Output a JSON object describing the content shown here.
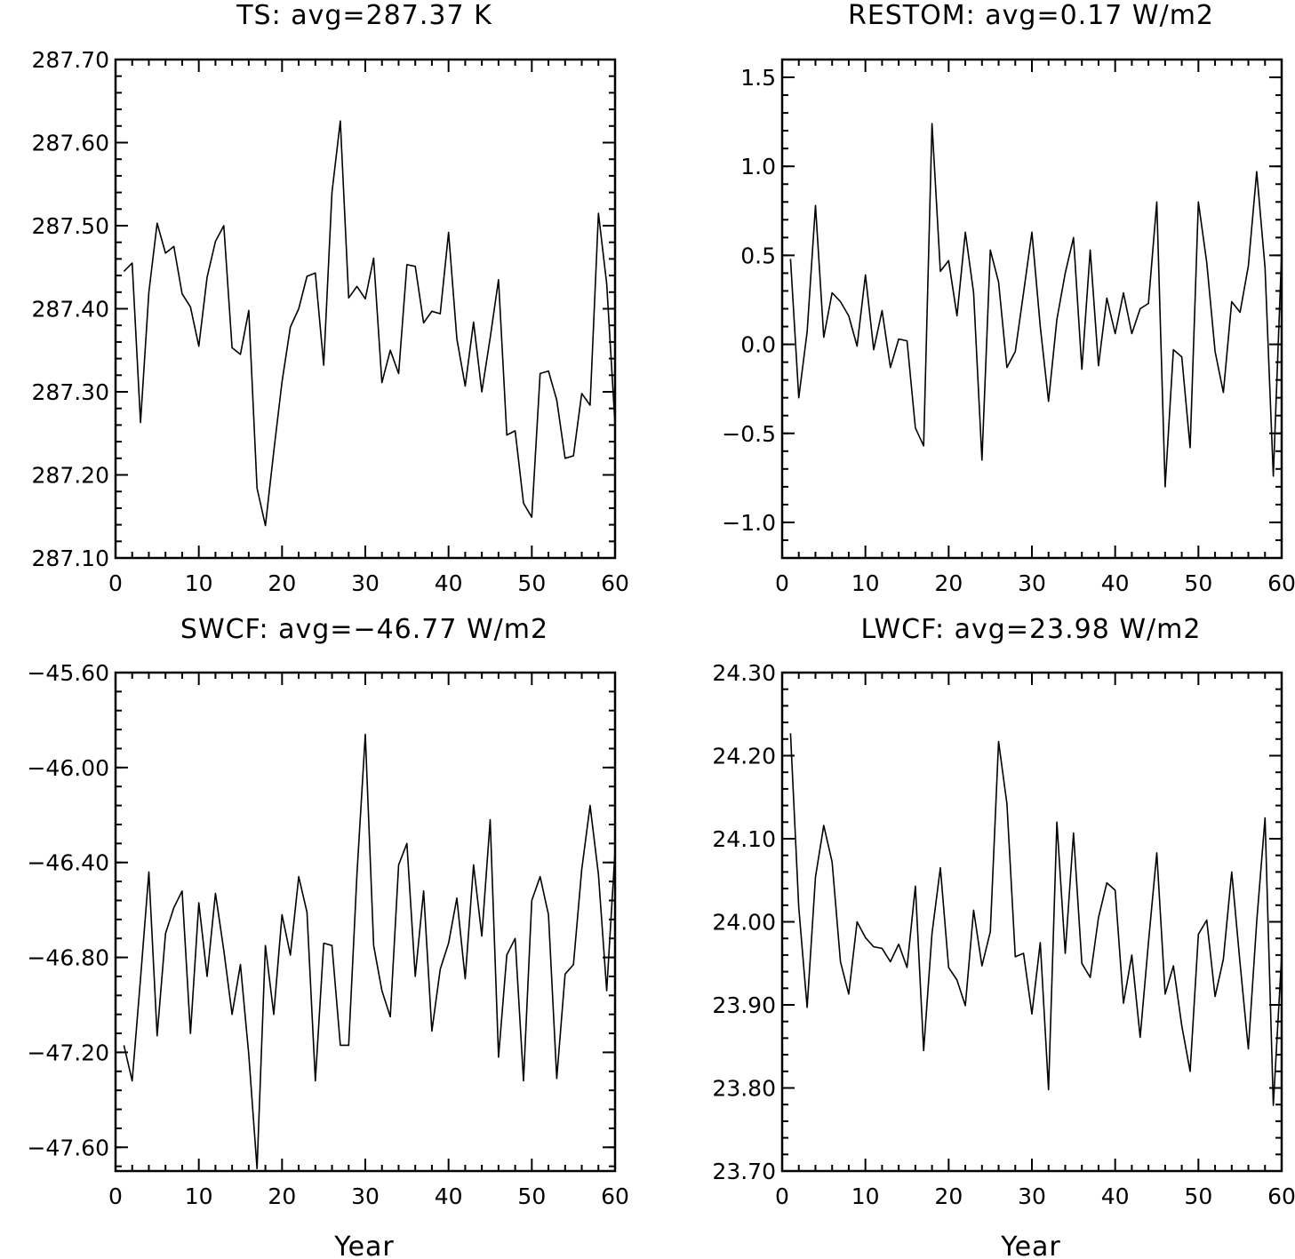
{
  "chart_data": [
    {
      "type": "line",
      "title": "TS: avg=287.37 K",
      "xlabel": "",
      "ylabel": "",
      "xlim": [
        0,
        60
      ],
      "ylim": [
        287.1,
        287.7
      ],
      "xticks": [
        0,
        10,
        20,
        30,
        40,
        50,
        60
      ],
      "xtick_labels": [
        "0",
        "10",
        "20",
        "30",
        "40",
        "50",
        "60"
      ],
      "yticks": [
        287.1,
        287.2,
        287.3,
        287.4,
        287.5,
        287.6,
        287.7
      ],
      "ytick_labels": [
        "287.10",
        "287.20",
        "287.30",
        "287.40",
        "287.50",
        "287.60",
        "287.70"
      ],
      "grid": false,
      "series": [
        {
          "x": [
            1,
            2,
            3,
            4,
            5,
            6,
            7,
            8,
            9,
            10,
            11,
            12,
            13,
            14,
            15,
            16,
            17,
            18,
            19,
            20,
            21,
            22,
            23,
            24,
            25,
            26,
            27,
            28,
            29,
            30,
            31,
            32,
            33,
            34,
            35,
            36,
            37,
            38,
            39,
            40,
            41,
            42,
            43,
            44,
            45,
            46,
            47,
            48,
            49,
            50,
            51,
            52,
            53,
            54,
            55,
            56,
            57,
            58,
            59,
            60
          ],
          "values": [
            287.445,
            287.455,
            287.263,
            287.42,
            287.503,
            287.467,
            287.475,
            287.418,
            287.402,
            287.355,
            287.438,
            287.481,
            287.5,
            287.353,
            287.345,
            287.398,
            287.184,
            287.139,
            287.228,
            287.312,
            287.378,
            287.4,
            287.439,
            287.443,
            287.332,
            287.54,
            287.626,
            287.413,
            287.427,
            287.412,
            287.461,
            287.311,
            287.35,
            287.322,
            287.453,
            287.451,
            287.383,
            287.397,
            287.394,
            287.492,
            287.364,
            287.307,
            287.384,
            287.3,
            287.365,
            287.435,
            287.248,
            287.253,
            287.166,
            287.149,
            287.322,
            287.325,
            287.29,
            287.22,
            287.223,
            287.298,
            287.284,
            287.515,
            287.43,
            287.26
          ]
        }
      ]
    },
    {
      "type": "line",
      "title": "RESTOM: avg=0.17 W/m2",
      "xlabel": "",
      "ylabel": "",
      "xlim": [
        0,
        60
      ],
      "ylim": [
        -1.2,
        1.6
      ],
      "xticks": [
        0,
        10,
        20,
        30,
        40,
        50,
        60
      ],
      "xtick_labels": [
        "0",
        "10",
        "20",
        "30",
        "40",
        "50",
        "60"
      ],
      "yticks": [
        -1.0,
        -0.5,
        0.0,
        0.5,
        1.0,
        1.5
      ],
      "ytick_labels": [
        "−1.0",
        "−0.5",
        "0.0",
        "0.5",
        "1.0",
        "1.5"
      ],
      "grid": false,
      "series": [
        {
          "x": [
            1,
            2,
            3,
            4,
            5,
            6,
            7,
            8,
            9,
            10,
            11,
            12,
            13,
            14,
            15,
            16,
            17,
            18,
            19,
            20,
            21,
            22,
            23,
            24,
            25,
            26,
            27,
            28,
            29,
            30,
            31,
            32,
            33,
            34,
            35,
            36,
            37,
            38,
            39,
            40,
            41,
            42,
            43,
            44,
            45,
            46,
            47,
            48,
            49,
            50,
            51,
            52,
            53,
            54,
            55,
            56,
            57,
            58,
            59,
            60
          ],
          "values": [
            0.48,
            -0.3,
            0.07,
            0.78,
            0.04,
            0.29,
            0.24,
            0.16,
            -0.01,
            0.39,
            -0.03,
            0.19,
            -0.13,
            0.03,
            0.02,
            -0.47,
            -0.57,
            1.24,
            0.41,
            0.47,
            0.16,
            0.63,
            0.29,
            -0.65,
            0.53,
            0.35,
            -0.13,
            -0.04,
            0.29,
            0.63,
            0.1,
            -0.32,
            0.14,
            0.4,
            0.6,
            -0.14,
            0.53,
            -0.12,
            0.26,
            0.06,
            0.29,
            0.06,
            0.2,
            0.23,
            0.8,
            -0.8,
            -0.03,
            -0.07,
            -0.58,
            0.8,
            0.46,
            -0.04,
            -0.27,
            0.24,
            0.18,
            0.44,
            0.97,
            0.43,
            -0.74,
            0.52
          ]
        }
      ]
    },
    {
      "type": "line",
      "title": "SWCF: avg=−46.77 W/m2",
      "xlabel": "Year",
      "ylabel": "",
      "xlim": [
        0,
        60
      ],
      "ylim": [
        -47.7,
        -45.6
      ],
      "xticks": [
        0,
        10,
        20,
        30,
        40,
        50,
        60
      ],
      "xtick_labels": [
        "0",
        "10",
        "20",
        "30",
        "40",
        "50",
        "60"
      ],
      "yticks": [
        -47.6,
        -47.2,
        -46.8,
        -46.4,
        -46.0,
        -45.6
      ],
      "ytick_labels": [
        "−47.60",
        "−47.20",
        "−46.80",
        "−46.40",
        "−46.00",
        "−45.60"
      ],
      "grid": false,
      "series": [
        {
          "x": [
            1,
            2,
            3,
            4,
            5,
            6,
            7,
            8,
            9,
            10,
            11,
            12,
            13,
            14,
            15,
            16,
            17,
            18,
            19,
            20,
            21,
            22,
            23,
            24,
            25,
            26,
            27,
            28,
            29,
            30,
            31,
            32,
            33,
            34,
            35,
            36,
            37,
            38,
            39,
            40,
            41,
            42,
            43,
            44,
            45,
            46,
            47,
            48,
            49,
            50,
            51,
            52,
            53,
            54,
            55,
            56,
            57,
            58,
            59,
            60
          ],
          "values": [
            -47.17,
            -47.32,
            -46.89,
            -46.44,
            -47.13,
            -46.7,
            -46.59,
            -46.52,
            -47.12,
            -46.57,
            -46.88,
            -46.53,
            -46.77,
            -47.04,
            -46.83,
            -47.21,
            -47.69,
            -46.75,
            -47.04,
            -46.62,
            -46.79,
            -46.46,
            -46.61,
            -47.32,
            -46.74,
            -46.75,
            -47.17,
            -47.17,
            -46.45,
            -45.86,
            -46.75,
            -46.94,
            -47.05,
            -46.41,
            -46.32,
            -46.88,
            -46.52,
            -47.11,
            -46.85,
            -46.74,
            -46.55,
            -46.89,
            -46.41,
            -46.71,
            -46.22,
            -47.22,
            -46.79,
            -46.72,
            -47.32,
            -46.56,
            -46.46,
            -46.62,
            -47.31,
            -46.87,
            -46.83,
            -46.43,
            -46.16,
            -46.45,
            -46.94,
            -46.35
          ]
        }
      ]
    },
    {
      "type": "line",
      "title": "LWCF: avg=23.98 W/m2",
      "xlabel": "Year",
      "ylabel": "",
      "xlim": [
        0,
        60
      ],
      "ylim": [
        23.7,
        24.3
      ],
      "xticks": [
        0,
        10,
        20,
        30,
        40,
        50,
        60
      ],
      "xtick_labels": [
        "0",
        "10",
        "20",
        "30",
        "40",
        "50",
        "60"
      ],
      "yticks": [
        23.7,
        23.8,
        23.9,
        24.0,
        24.1,
        24.2,
        24.3
      ],
      "ytick_labels": [
        "23.70",
        "23.80",
        "23.90",
        "24.00",
        "24.10",
        "24.20",
        "24.30"
      ],
      "grid": false,
      "series": [
        {
          "x": [
            1,
            2,
            3,
            4,
            5,
            6,
            7,
            8,
            9,
            10,
            11,
            12,
            13,
            14,
            15,
            16,
            17,
            18,
            19,
            20,
            21,
            22,
            23,
            24,
            25,
            26,
            27,
            28,
            29,
            30,
            31,
            32,
            33,
            34,
            35,
            36,
            37,
            38,
            39,
            40,
            41,
            42,
            43,
            44,
            45,
            46,
            47,
            48,
            49,
            50,
            51,
            52,
            53,
            54,
            55,
            56,
            57,
            58,
            59,
            60
          ],
          "values": [
            24.227,
            24.017,
            23.897,
            24.054,
            24.116,
            24.072,
            23.952,
            23.913,
            24.0,
            23.981,
            23.97,
            23.968,
            23.952,
            23.973,
            23.945,
            24.043,
            23.845,
            23.986,
            24.065,
            23.945,
            23.93,
            23.899,
            24.014,
            23.947,
            23.988,
            24.217,
            24.142,
            23.958,
            23.962,
            23.889,
            23.975,
            23.798,
            24.12,
            23.962,
            24.107,
            23.95,
            23.933,
            24.005,
            24.047,
            24.038,
            23.902,
            23.96,
            23.861,
            23.975,
            24.083,
            23.913,
            23.947,
            23.875,
            23.82,
            23.985,
            24.002,
            23.91,
            23.955,
            24.06,
            23.95,
            23.847,
            24.0,
            24.125,
            23.779,
            23.96
          ]
        }
      ]
    }
  ]
}
